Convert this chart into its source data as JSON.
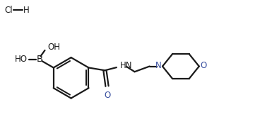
{
  "bg_color": "#ffffff",
  "line_color": "#1a1a1a",
  "n_color": "#3a50a0",
  "o_color": "#3a50a0",
  "line_width": 1.6,
  "font_size": 8.5,
  "figsize": [
    3.85,
    1.89
  ],
  "dpi": 100,
  "xlim": [
    0,
    10
  ],
  "ylim": [
    0,
    4.9
  ]
}
